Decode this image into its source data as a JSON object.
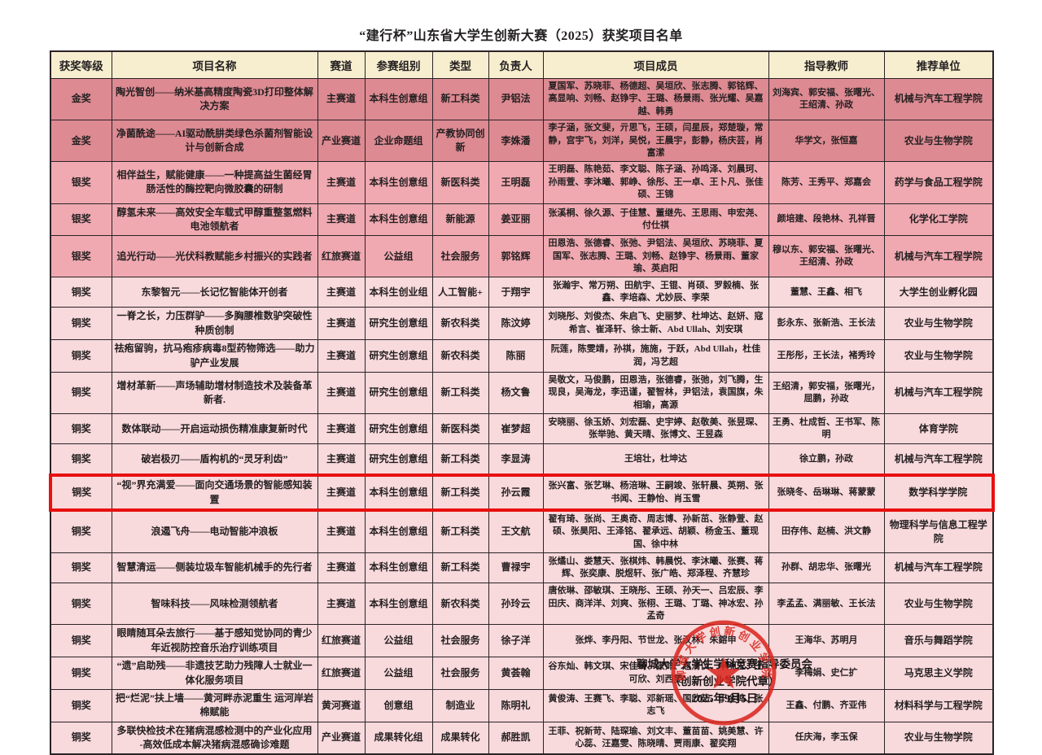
{
  "title": "“建行杯”山东省大学生创新大赛（2025）获奖项目名单",
  "colors": {
    "header": "#f7eecf",
    "gold": "#dd8a92",
    "silver": "#f0a9b1",
    "bronze": "#f8d9dc",
    "highlight": "#e8100f",
    "seal": "#d9251c"
  },
  "table": {
    "headers": [
      "获奖等级",
      "项目名称",
      "赛道",
      "参赛组别",
      "类型",
      "负责人",
      "项目成员",
      "指导教师",
      "推荐单位"
    ],
    "column_keys": [
      "award",
      "project",
      "track",
      "group",
      "type",
      "leader",
      "members",
      "advisors",
      "unit"
    ],
    "rows": [
      {
        "award": "金奖",
        "project": "陶光智创——纳米基高精度陶瓷3D打印整体解决方案",
        "track": "主赛道",
        "group": "本科生创意组",
        "type": "新工科类",
        "leader": "尹铝法",
        "members": "夏国军、苏晓菲、杨德超、吴垣欣、张志腾、郭铭辉、高显响、刘畅、赵铮宇、王璐、杨景雨、张光耀、吴嘉越、韩勇",
        "advisors": "刘海宾、郭安福、张曙光、王绍清、孙政",
        "unit": "机械与汽车工程学院",
        "award_class": "gold",
        "highlighted": false
      },
      {
        "award": "金奖",
        "project": "净菌酰途——AI驱动酰肼类绿色杀菌剂智能设计与创新合成",
        "track": "产业赛道",
        "group": "企业命题组",
        "type": "产教协同创新",
        "leader": "李姝潘",
        "members": "李子涵，张文斐，亓思飞，王硕，闫星辰，郑楚璇，常静，宫宇飞，刘洋，吴悦，王晨宇，彭静，杨庆芸，肖富潆",
        "advisors": "华学文，张恒嘉",
        "unit": "农业与生物学院",
        "award_class": "gold",
        "highlighted": false
      },
      {
        "award": "银奖",
        "project": "相伴益生，赋能健康——一种提高益生菌经胃肠活性的酶控靶向微胶囊的研制",
        "track": "主赛道",
        "group": "本科生创意组",
        "type": "新医科类",
        "leader": "王明磊",
        "members": "王明磊、陈艳茹、李文聪、陈子涵、孙鸣泽、刘晨珂、孙雨萱、李沐曦、郭峥、徐彤、王一卓、王卜凡、张佳硕、王锦",
        "advisors": "陈芳、王秀平、郑嘉会",
        "unit": "药学与食品工程学院",
        "award_class": "silver",
        "highlighted": false
      },
      {
        "award": "银奖",
        "project": "醇氢未来——高效安全车载式甲醇重整氢燃料电池领航者",
        "track": "主赛道",
        "group": "本科生创意组",
        "type": "新能源",
        "leader": "姜亚丽",
        "members": "张溪桐、徐久源、于佳慧、董继先、王思雨、申宏尧、付仕祺",
        "advisors": "颜培建、段艳林、孔祥晋",
        "unit": "化学化工学院",
        "award_class": "silver",
        "highlighted": false
      },
      {
        "award": "银奖",
        "project": "追光行动——光伏科教赋能乡村振兴的实践者",
        "track": "红旅赛道",
        "group": "公益组",
        "type": "社会服务",
        "leader": "郭铭辉",
        "members": "田恩浩、张德睿、张弛、尹铝法、吴垣欣、苏晓菲、夏国军、张志腾、王璐、刘畅、赵铮宇、杨景雨、董家瑜、英启阳",
        "advisors": "穆以东、郭安福、张曙光、王绍清、孙政",
        "unit": "机械与汽车工程学院",
        "award_class": "silver",
        "highlighted": false
      },
      {
        "award": "铜奖",
        "project": "东黎智元——长记忆智能体开创者",
        "track": "主赛道",
        "group": "本科生创业组",
        "type": "人工智能+",
        "leader": "于翔宇",
        "members": "张瀚宇、常万朔、田航宇、王锟、肖硕、罗毅楠、张鑫、李培森、尤妙辰、李荣",
        "advisors": "董慧、王鑫、相飞",
        "unit": "大学生创业孵化园",
        "award_class": "bronze",
        "highlighted": false
      },
      {
        "award": "铜奖",
        "project": "一脊之长，力压群驴——多胸腰椎数驴突破性种质创制",
        "track": "主赛道",
        "group": "研究生创意组",
        "type": "新农科类",
        "leader": "陈汶婷",
        "members": "刘晓彤、刘俊杰、朱启飞、史丽梦、杜坤达、赵妍、寇希言、崔泽轩、徐士新、Abd Ullah、刘安琪",
        "advisors": "彭永东、张新浩、王长法",
        "unit": "农业与生物学院",
        "award_class": "bronze",
        "highlighted": false
      },
      {
        "award": "铜奖",
        "project": "祛疱留驹，抗马疱疹病毒8型药物筛选——助力驴产业发展",
        "track": "主赛道",
        "group": "研究生创意组",
        "type": "新农科类",
        "leader": "陈丽",
        "members": "阮莲，陈雯靖，孙祺，施施，于跃，Abd Ullah，杜佳润，冯艺超",
        "advisors": "王彤彤，王长法，褚秀玲",
        "unit": "农业与生物学院",
        "award_class": "bronze",
        "highlighted": false
      },
      {
        "award": "铜奖",
        "project": "增材革新——声场辅助增材制造技术及装备革新者.",
        "track": "主赛道",
        "group": "研究生创意组",
        "type": "新工科类",
        "leader": "杨文鲁",
        "members": "吴敬文，马俊鹏，田恩浩，张德睿，张弛，刘飞腾，生现良，吴海龙，李迅谨，翟智林，尹铝法，袁国旗，朱相瑜，高源",
        "advisors": "王绍清，郭安福，张曙光，屈鹏，孙政",
        "unit": "机械与汽车工程学院",
        "award_class": "bronze",
        "highlighted": false
      },
      {
        "award": "铜奖",
        "project": "数体联动——开启运动损伤精准康复新时代",
        "track": "主赛道",
        "group": "研究生创意组",
        "type": "新医科类",
        "leader": "崔梦超",
        "members": "安晓丽、徐玉娇、刘宏磊、史宇婷、赵敬美、张昱琛、张举驰、黄天晴、张博文、王昱森",
        "advisors": "王勇、杜成哲、王书军、陈明",
        "unit": "体育学院",
        "award_class": "bronze",
        "highlighted": false
      },
      {
        "award": "铜奖",
        "project": "破岩极刃——盾构机的“灵牙利齿”",
        "track": "主赛道",
        "group": "研究生创意组",
        "type": "新工科类",
        "leader": "李显涛",
        "members": "王培壮，杜坤达",
        "advisors": "徐立鹏，孙政",
        "unit": "机械与汽车工程学院",
        "award_class": "bronze",
        "highlighted": false
      },
      {
        "award": "铜奖",
        "project": "“视”界充满爱——面向交通场景的智能感知装置",
        "track": "主赛道",
        "group": "本科生创意组",
        "type": "新工科类",
        "leader": "孙云霞",
        "members": "张兴富、张艺琳、杨涪琳、王嗣竣、张轩晨、英朔、张书闻、王静怡、肖玉雪",
        "advisors": "张晓冬、岳琳琳、蒋蒙蒙",
        "unit": "数学科学学院",
        "award_class": "bronze",
        "highlighted": true
      },
      {
        "award": "铜奖",
        "project": "浪遏飞舟——电动智能冲浪板",
        "track": "主赛道",
        "group": "本科生创意组",
        "type": "新工科类",
        "leader": "王文航",
        "members": "翟有琦、张尚、王奥奇、周志博、孙新茁、张静萱、赵硕、张昊阳、王泽铭、翟承远、胡颖、杨金玉、董现国、徐中林",
        "advisors": "田存伟、赵楠、洪文静",
        "unit": "物理科学与信息工程学院",
        "award_class": "bronze",
        "highlighted": false
      },
      {
        "award": "铜奖",
        "project": "智慧清运——侧装垃圾车智能机械手的先行者",
        "track": "主赛道",
        "group": "本科生创意组",
        "type": "新工科类",
        "leader": "曹禄宇",
        "members": "张燏山、娄慧天、张棋炜、韩晨悦、李沐曦、张赛、蒋辉、张奕康、脱煜轩、张广皓、郑泽程、齐慧珍",
        "advisors": "孙群、胡忠华、张曙光",
        "unit": "机械与汽车工程学院",
        "award_class": "bronze",
        "highlighted": false
      },
      {
        "award": "铜奖",
        "project": "智味科技——风味检测领航者",
        "track": "主赛道",
        "group": "本科生创意组",
        "type": "新农科类",
        "leader": "孙玲云",
        "members": "唐依琳、邵敏琪、王晓彤、王硕、孙天一、吕宏辰、李田庆、商洋洋、刘爽、张栩、王璐、丁璐、神冰宏、孙孟奇",
        "advisors": "李孟孟、满丽敏、王长法",
        "unit": "农业与生物学院",
        "award_class": "bronze",
        "highlighted": false
      },
      {
        "award": "铜奖",
        "project": "眼睛随耳朵去旅行——基于感知觉协同的青少年近视防控音乐治疗训练项目",
        "track": "红旅赛道",
        "group": "公益组",
        "type": "社会服务",
        "leader": "徐子洋",
        "members": "张烨、李丹阳、节世龙、张汉林、朱鎔申",
        "advisors": "王海华、苏明月",
        "unit": "音乐与舞蹈学院",
        "award_class": "bronze",
        "highlighted": false
      },
      {
        "award": "铜奖",
        "project": "“遗”启助残——非遗技艺助力残障人士就业一体化服务项目",
        "track": "红旅赛道",
        "group": "公益组",
        "type": "社会服务",
        "leader": "黄荟翰",
        "members": "谷东灿、韩文琪、宋佳琦、张帅、赵清仪、申明玉、王可欣、刘西雯",
        "advisors": "李梅娟、史仁扩",
        "unit": "马克思主义学院",
        "award_class": "bronze",
        "highlighted": false
      },
      {
        "award": "铜奖",
        "project": "把“烂泥”扶上墙——黄河畔赤泥重生 运河岸岩棉赋能",
        "track": "黄河赛道",
        "group": "创意组",
        "type": "制造业",
        "leader": "陈明礼",
        "members": "黄俊涛、王赛飞、李聪、邓新瑶、国欣茹、于金鸣、张志飞",
        "advisors": "王鑫、付鹏、齐亚伟",
        "unit": "材料科学与工程学院",
        "award_class": "bronze",
        "highlighted": false
      },
      {
        "award": "铜奖",
        "project": "多联快检技术在猪病混感检测中的产业化应用 -高效低成本解决猪病混感确诊难题",
        "track": "产业赛道",
        "group": "成果转化组",
        "type": "成果转化",
        "leader": "郝胜凯",
        "members": "王菲、祝新苛、陆琛瑜、刘文丰、董苗苗、姚美慧、许心蕊、汪嘉雯、陈晓晴、贾雨康、翟奕翔",
        "advisors": "任庆海，李玉保",
        "unit": "农业与生物学院",
        "award_class": "bronze",
        "highlighted": false
      }
    ]
  },
  "footer": {
    "line1": "聊城大学大学生学科竞赛指导委员会",
    "line2": "（创新创业学院代章）",
    "line3": "2025年9月5日",
    "seal_text": "聊城大学创新创业学院"
  }
}
